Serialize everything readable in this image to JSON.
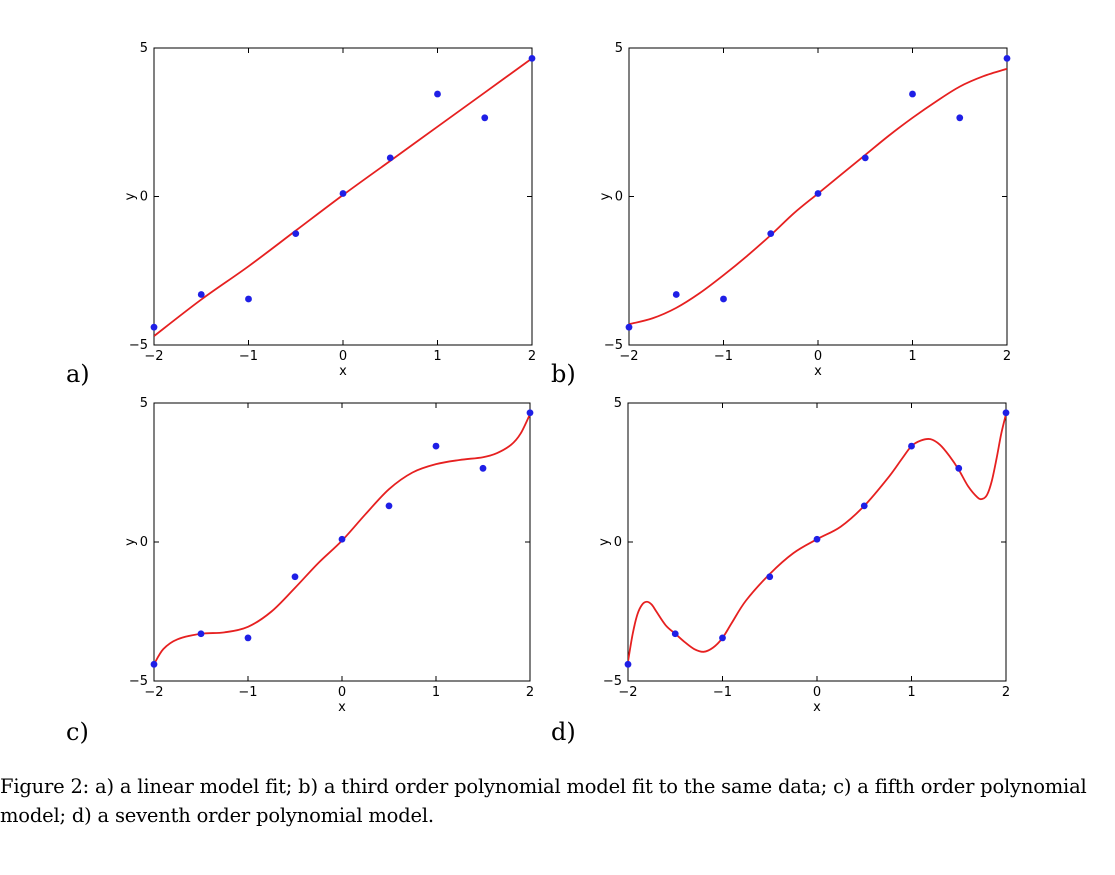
{
  "chart_data": [
    {
      "type": "scatter",
      "panel_label": "a)",
      "xlabel": "x",
      "ylabel": "y",
      "xlim": [
        -2,
        2
      ],
      "ylim": [
        -5,
        5
      ],
      "xticks": [
        "−2",
        "−1",
        "0",
        "1",
        "2"
      ],
      "yticks": [
        "−5",
        "0",
        "5"
      ],
      "points": {
        "x": [
          -2,
          -1.5,
          -1,
          -0.5,
          0,
          0.5,
          1,
          1.5,
          2
        ],
        "y": [
          -4.4,
          -3.3,
          -3.45,
          -1.25,
          0.1,
          1.3,
          3.45,
          2.65,
          4.65
        ]
      },
      "fit": {
        "x": [
          -2,
          -1.5,
          -1,
          -0.5,
          0,
          0.5,
          1,
          1.5,
          2
        ],
        "y": [
          -4.7,
          -3.47,
          -2.35,
          -1.15,
          0.05,
          1.2,
          2.35,
          3.5,
          4.65
        ]
      },
      "point_color": "#1f1fe6",
      "fit_color": "#e62020"
    },
    {
      "type": "scatter",
      "panel_label": "b)",
      "xlabel": "x",
      "ylabel": "y",
      "xlim": [
        -2,
        2
      ],
      "ylim": [
        -5,
        5
      ],
      "xticks": [
        "−2",
        "−1",
        "0",
        "1",
        "2"
      ],
      "yticks": [
        "−5",
        "0",
        "5"
      ],
      "points": {
        "x": [
          -2,
          -1.5,
          -1,
          -0.5,
          0,
          0.5,
          1,
          1.5,
          2
        ],
        "y": [
          -4.4,
          -3.3,
          -3.45,
          -1.25,
          0.1,
          1.3,
          3.45,
          2.65,
          4.65
        ]
      },
      "fit": {
        "x": [
          -2,
          -1.75,
          -1.5,
          -1.25,
          -1,
          -0.75,
          -0.5,
          -0.25,
          0,
          0.25,
          0.5,
          0.75,
          1,
          1.25,
          1.5,
          1.75,
          2
        ],
        "y": [
          -4.3,
          -4.1,
          -3.75,
          -3.25,
          -2.65,
          -2.0,
          -1.3,
          -0.55,
          0.1,
          0.75,
          1.4,
          2.05,
          2.65,
          3.2,
          3.7,
          4.05,
          4.3
        ]
      },
      "point_color": "#1f1fe6",
      "fit_color": "#e62020"
    },
    {
      "type": "scatter",
      "panel_label": "c)",
      "xlabel": "x",
      "ylabel": "y",
      "xlim": [
        -2,
        2
      ],
      "ylim": [
        -5,
        5
      ],
      "xticks": [
        "−2",
        "−1",
        "0",
        "1",
        "2"
      ],
      "yticks": [
        "−5",
        "0",
        "5"
      ],
      "points": {
        "x": [
          -2,
          -1.5,
          -1,
          -0.5,
          0,
          0.5,
          1,
          1.5,
          2
        ],
        "y": [
          -4.4,
          -3.3,
          -3.45,
          -1.25,
          0.1,
          1.3,
          3.45,
          2.65,
          4.65
        ]
      },
      "fit": {
        "x": [
          -2,
          -1.9,
          -1.75,
          -1.5,
          -1.25,
          -1,
          -0.75,
          -0.5,
          -0.25,
          0,
          0.25,
          0.5,
          0.75,
          1,
          1.25,
          1.5,
          1.65,
          1.8,
          1.9,
          2
        ],
        "y": [
          -4.4,
          -3.85,
          -3.5,
          -3.3,
          -3.25,
          -3.05,
          -2.5,
          -1.65,
          -0.75,
          0.05,
          1.0,
          1.9,
          2.5,
          2.8,
          2.95,
          3.05,
          3.2,
          3.5,
          3.9,
          4.6
        ]
      },
      "point_color": "#1f1fe6",
      "fit_color": "#e62020"
    },
    {
      "type": "scatter",
      "panel_label": "d)",
      "xlabel": "x",
      "ylabel": "y",
      "xlim": [
        -2,
        2
      ],
      "ylim": [
        -5,
        5
      ],
      "xticks": [
        "−2",
        "−1",
        "0",
        "1",
        "2"
      ],
      "yticks": [
        "−5",
        "0",
        "5"
      ],
      "points": {
        "x": [
          -2,
          -1.5,
          -1,
          -0.5,
          0,
          0.5,
          1,
          1.5,
          2
        ],
        "y": [
          -4.4,
          -3.3,
          -3.45,
          -1.25,
          0.1,
          1.3,
          3.45,
          2.65,
          4.65
        ]
      },
      "fit": {
        "x": [
          -2,
          -1.95,
          -1.9,
          -1.85,
          -1.8,
          -1.75,
          -1.7,
          -1.6,
          -1.5,
          -1.4,
          -1.3,
          -1.2,
          -1.1,
          -1,
          -0.9,
          -0.75,
          -0.5,
          -0.25,
          0,
          0.25,
          0.5,
          0.75,
          0.9,
          1,
          1.1,
          1.2,
          1.3,
          1.4,
          1.5,
          1.6,
          1.7,
          1.75,
          1.8,
          1.85,
          1.9,
          1.95,
          2
        ],
        "y": [
          -4.3,
          -3.3,
          -2.6,
          -2.25,
          -2.15,
          -2.25,
          -2.5,
          -3.0,
          -3.3,
          -3.6,
          -3.85,
          -3.95,
          -3.8,
          -3.45,
          -2.9,
          -2.1,
          -1.15,
          -0.4,
          0.1,
          0.55,
          1.3,
          2.3,
          3.0,
          3.45,
          3.65,
          3.7,
          3.5,
          3.1,
          2.6,
          2.0,
          1.6,
          1.55,
          1.7,
          2.2,
          3.0,
          3.9,
          4.6
        ]
      },
      "point_color": "#1f1fe6",
      "fit_color": "#e62020"
    }
  ],
  "caption": "Figure 2: a) a linear model fit; b) a third order polynomial model fit to the same data; c) a fifth order polynomial model; d) a seventh order polynomial model."
}
